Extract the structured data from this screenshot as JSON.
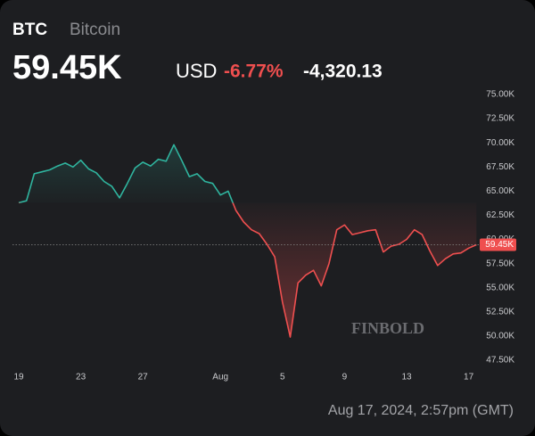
{
  "header": {
    "symbol": "BTC",
    "name": "Bitcoin",
    "price": "59.45K",
    "currency": "USD",
    "change_pct": "-6.77%",
    "change": "-4,320.13"
  },
  "chart_data": {
    "type": "line",
    "categories": [
      "19",
      null,
      null,
      null,
      null,
      null,
      null,
      null,
      "23",
      null,
      null,
      null,
      null,
      null,
      null,
      null,
      "27",
      null,
      null,
      null,
      null,
      null,
      null,
      null,
      null,
      null,
      "Aug",
      null,
      null,
      null,
      null,
      null,
      null,
      null,
      "5",
      null,
      null,
      null,
      null,
      null,
      null,
      null,
      "9",
      null,
      null,
      null,
      null,
      null,
      null,
      null,
      "13",
      null,
      null,
      null,
      null,
      null,
      null,
      null,
      "17",
      null
    ],
    "series": [
      {
        "name": "BTC",
        "color": "#2fb59f",
        "down_color": "#ef4f4f",
        "values": [
          63.8,
          64.0,
          66.8,
          67.0,
          67.2,
          67.6,
          67.9,
          67.5,
          68.2,
          67.3,
          66.9,
          66.0,
          65.5,
          64.3,
          65.8,
          67.4,
          68.0,
          67.6,
          68.3,
          68.1,
          69.8,
          68.2,
          66.5,
          66.8,
          66.0,
          65.8,
          64.6,
          65.0,
          63.0,
          61.8,
          61.0,
          60.6,
          59.5,
          58.2,
          53.5,
          49.9,
          55.5,
          56.3,
          56.8,
          55.2,
          57.5,
          61.0,
          61.5,
          60.5,
          60.7,
          60.9,
          61.0,
          58.7,
          59.3,
          59.5,
          60.0,
          61.0,
          60.5,
          58.8,
          57.3,
          58.0,
          58.5,
          58.6,
          59.1,
          59.45
        ]
      }
    ],
    "ylim": [
      47.5,
      75
    ],
    "yticks": [
      {
        "value": 47.5,
        "label": "47.50K"
      },
      {
        "value": 50,
        "label": "50.00K"
      },
      {
        "value": 52.5,
        "label": "52.50K"
      },
      {
        "value": 55,
        "label": "55.00K"
      },
      {
        "value": 57.5,
        "label": "57.50K"
      },
      {
        "value": 60,
        "label": "60.00K"
      },
      {
        "value": 62.5,
        "label": "62.50K"
      },
      {
        "value": 65,
        "label": "65.00K"
      },
      {
        "value": 67.5,
        "label": "67.50K"
      },
      {
        "value": 70,
        "label": "70.00K"
      },
      {
        "value": 72.5,
        "label": "72.50K"
      },
      {
        "value": 75,
        "label": "75.00K"
      }
    ],
    "grid": false,
    "watermark": "FINBOLD",
    "timestamp": "Aug 17, 2024, 2:57pm (GMT)"
  }
}
